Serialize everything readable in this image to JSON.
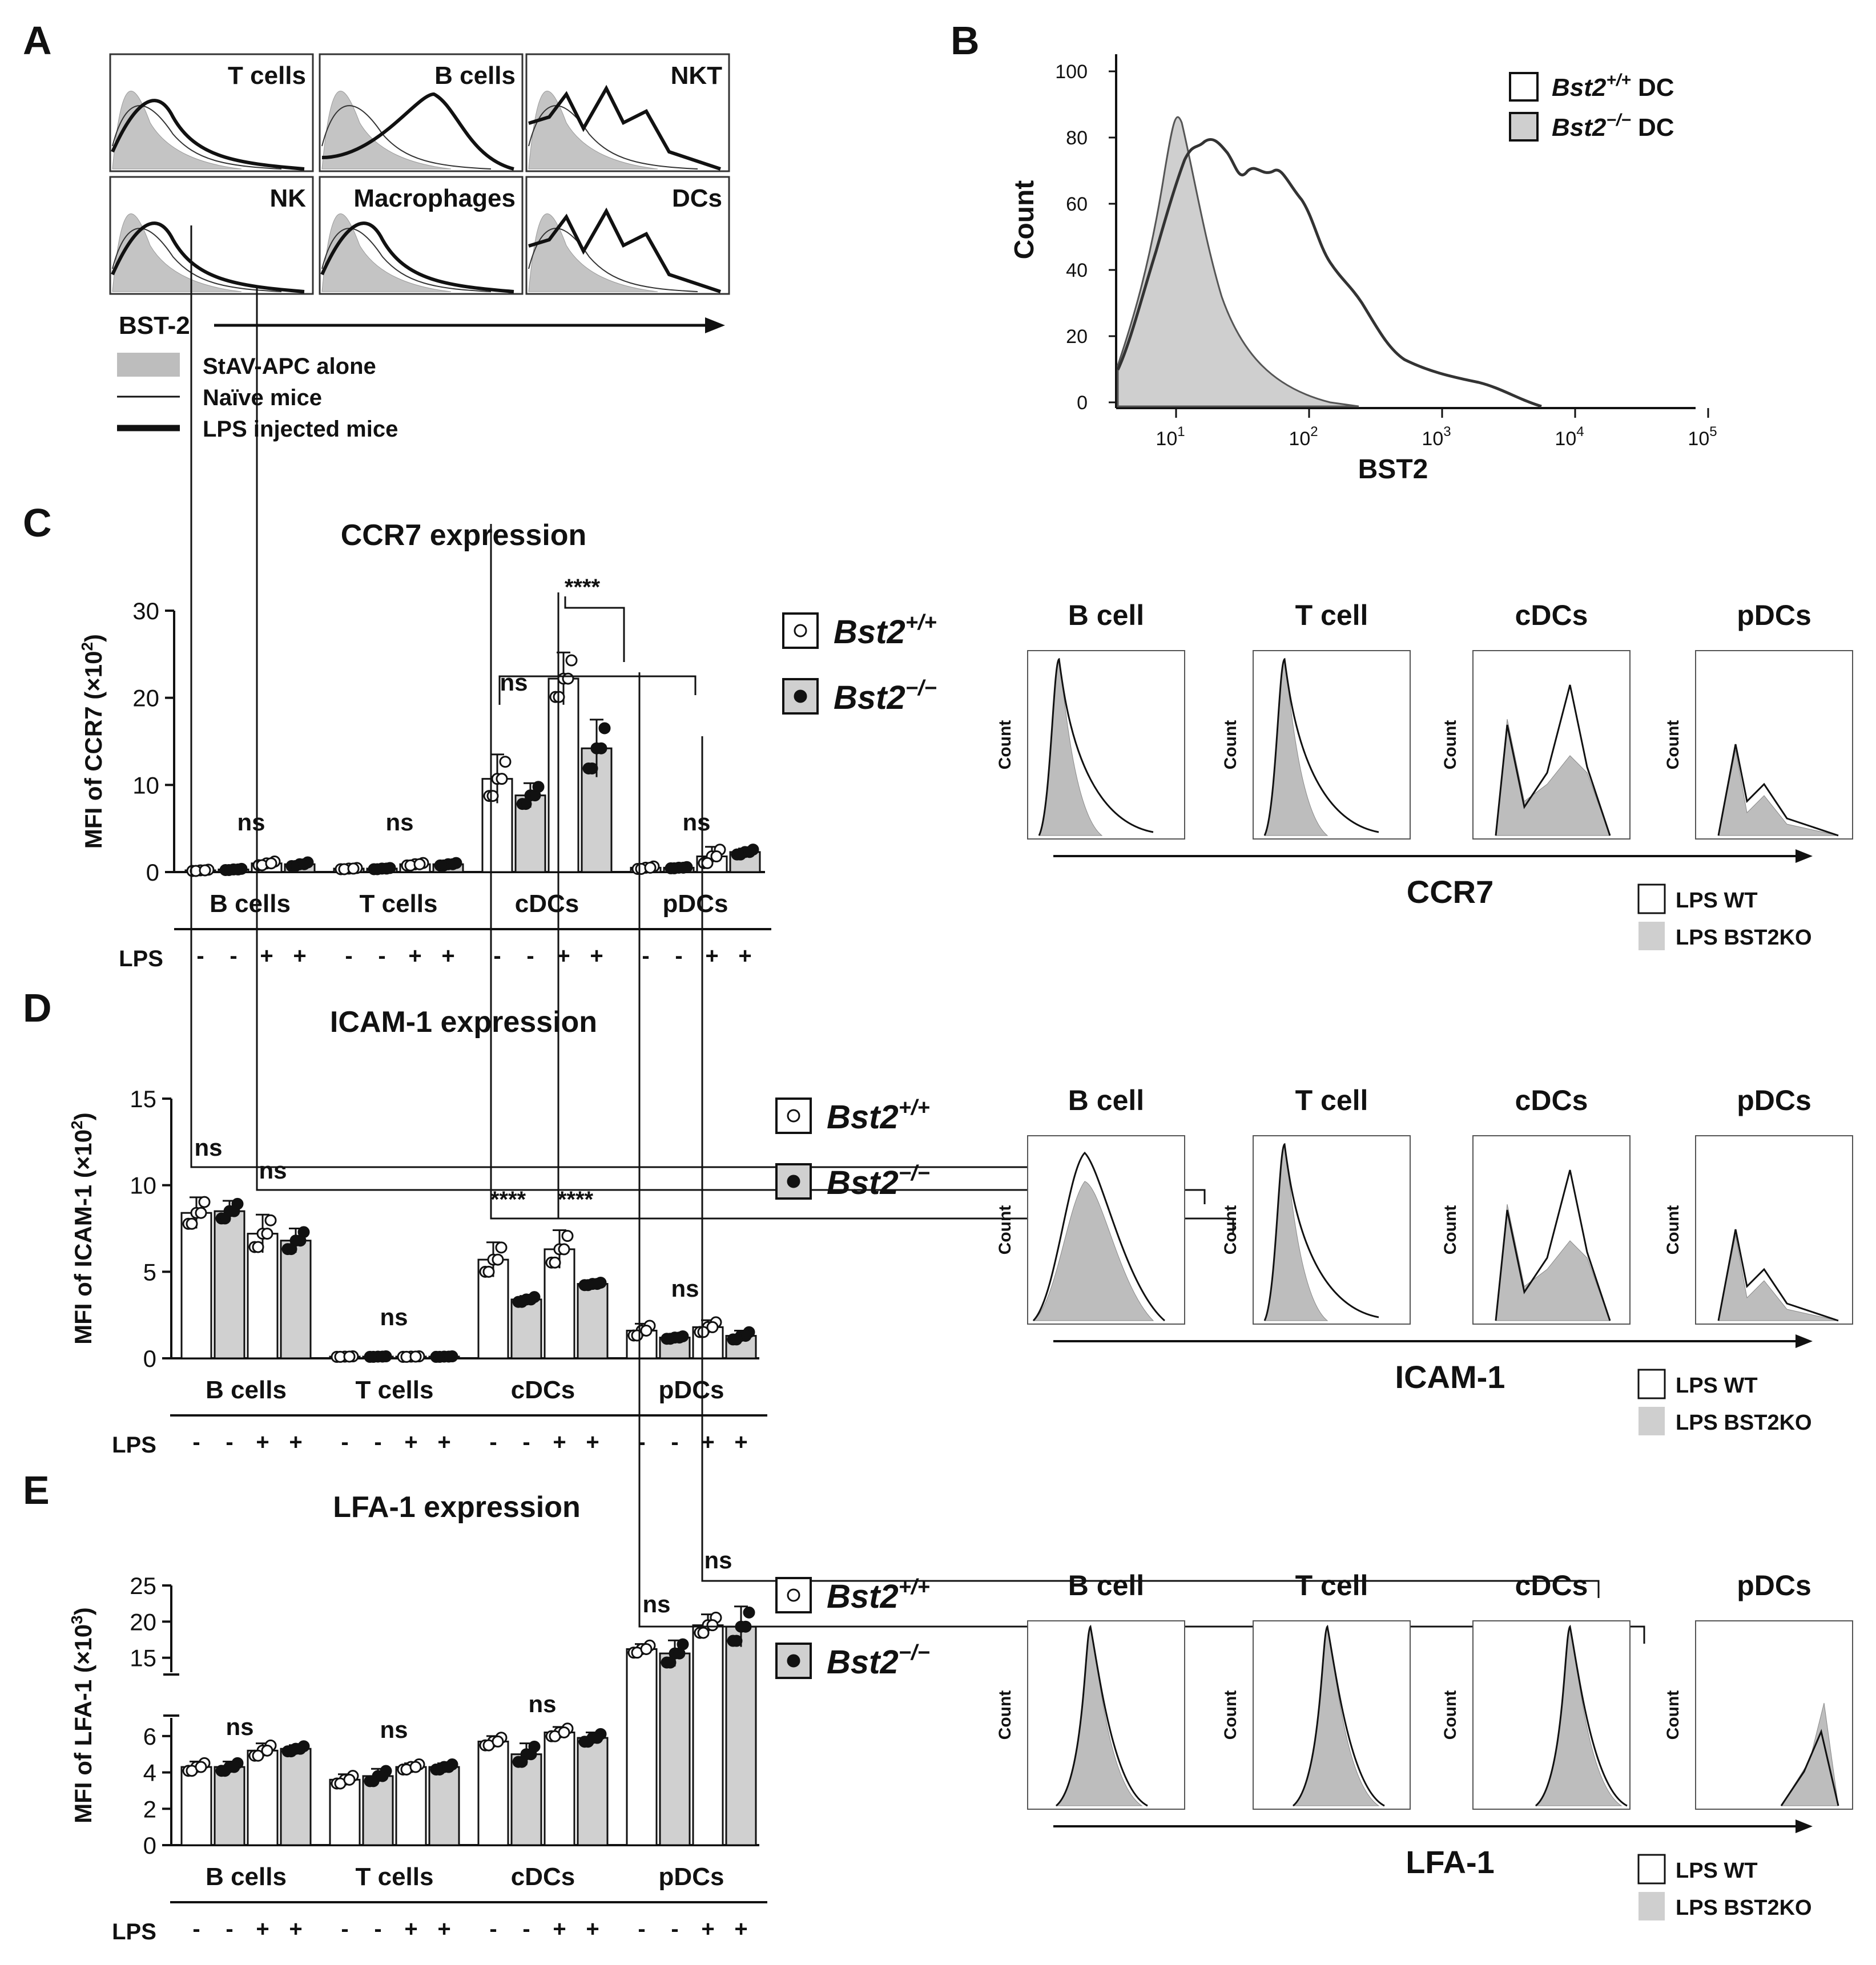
{
  "chart_data": [
    {
      "panel": "A",
      "type": "histogram-grid",
      "panels": [
        "T cells",
        "B cells",
        "NKT",
        "NK",
        "Macrophages",
        "DCs"
      ],
      "xlabel": "BST-2",
      "legend": [
        "StAV-APC alone",
        "Naïve mice",
        "LPS injected mice"
      ]
    },
    {
      "panel": "B",
      "type": "histogram",
      "ylabel": "Count",
      "xlabel": "BST2",
      "yticks": [
        "0",
        "20",
        "40",
        "60",
        "80",
        "100"
      ],
      "xticks": [
        "10",
        "10",
        "10",
        "10",
        "10"
      ],
      "xtick_exps": [
        "1",
        "2",
        "3",
        "4",
        "5"
      ],
      "legend": [
        {
          "name": "Bst2",
          "sup": "+/+",
          "suffix": " DC"
        },
        {
          "name": "Bst2",
          "sup": "−/−",
          "suffix": " DC"
        }
      ]
    },
    {
      "panel": "C",
      "type": "bar",
      "title": "CCR7 expression",
      "ylabel_main": "MFI of CCR7 (×10",
      "ylabel_sup": "2",
      "ylabel_end": ")",
      "yticks": [
        "0",
        "10",
        "20",
        "30"
      ],
      "ylim": [
        0,
        30
      ],
      "groups": [
        "B cells",
        "T cells",
        "cDCs",
        "pDCs"
      ],
      "lps_label": "LPS",
      "lps": [
        "-",
        "-",
        "+",
        "+"
      ],
      "means": [
        [
          0.2,
          0.3,
          1.0,
          0.9
        ],
        [
          0.4,
          0.4,
          0.9,
          0.9
        ],
        [
          10.7,
          8.8,
          22.2,
          14.2
        ],
        [
          0.5,
          0.5,
          1.8,
          2.3
        ]
      ],
      "errors": [
        [
          0.1,
          0.1,
          0.3,
          0.3
        ],
        [
          0.1,
          0.1,
          0.2,
          0.2
        ],
        [
          2.8,
          1.4,
          3.0,
          3.3
        ],
        [
          0.2,
          0.1,
          1.1,
          0.4
        ]
      ],
      "annotations": [
        "ns",
        "ns",
        "ns",
        "****",
        "ns"
      ]
    },
    {
      "panel": "D",
      "type": "bar",
      "title": "ICAM-1 expression",
      "ylabel_main": "MFI of ICAM-1 (×10",
      "ylabel_sup": "2",
      "ylabel_end": ")",
      "yticks": [
        "0",
        "5",
        "10",
        "15"
      ],
      "ylim": [
        0,
        15
      ],
      "groups": [
        "B cells",
        "T cells",
        "cDCs",
        "pDCs"
      ],
      "lps_label": "LPS",
      "lps": [
        "-",
        "-",
        "+",
        "+"
      ],
      "means": [
        [
          8.4,
          8.5,
          7.2,
          6.8
        ],
        [
          0.1,
          0.1,
          0.1,
          0.1
        ],
        [
          5.7,
          3.4,
          6.3,
          4.3
        ],
        [
          1.6,
          1.2,
          1.8,
          1.3
        ]
      ],
      "errors": [
        [
          0.9,
          0.6,
          1.1,
          0.7
        ],
        [
          0.02,
          0.02,
          0.02,
          0.02
        ],
        [
          1.0,
          0.2,
          1.1,
          0.1
        ],
        [
          0.4,
          0.1,
          0.4,
          0.3
        ]
      ],
      "annotations": [
        "ns",
        "ns",
        "ns",
        "****",
        "****",
        "ns"
      ]
    },
    {
      "panel": "E",
      "type": "bar",
      "title": "LFA-1 expression",
      "ylabel_main": "MFI of LFA-1 (×10",
      "ylabel_sup": "3",
      "ylabel_end": ")",
      "yticks": [
        "0",
        "2",
        "4",
        "6",
        "15",
        "20",
        "25"
      ],
      "ylim": [
        0,
        25
      ],
      "axis_break": [
        7,
        13
      ],
      "groups": [
        "B cells",
        "T cells",
        "cDCs",
        "pDCs"
      ],
      "lps_label": "LPS",
      "lps": [
        "-",
        "-",
        "+",
        "+"
      ],
      "means": [
        [
          4.3,
          4.3,
          5.2,
          5.3
        ],
        [
          3.6,
          3.8,
          4.3,
          4.3
        ],
        [
          5.7,
          5.0,
          6.2,
          5.9
        ],
        [
          16.2,
          15.6,
          19.5,
          19.3
        ]
      ],
      "errors": [
        [
          0.3,
          0.3,
          0.4,
          0.2
        ],
        [
          0.3,
          0.4,
          0.2,
          0.2
        ],
        [
          0.3,
          0.6,
          0.3,
          0.3
        ],
        [
          0.7,
          1.8,
          1.5,
          2.8
        ]
      ],
      "annotations": [
        "ns",
        "ns",
        "ns",
        "ns",
        "ns"
      ]
    },
    {
      "panel": "C-E right",
      "type": "histogram-row",
      "cells": [
        "B cell",
        "T cell",
        "cDCs",
        "pDCs"
      ],
      "ylabel": "Count",
      "xlabels": [
        "CCR7",
        "ICAM-1",
        "LFA-1"
      ],
      "legend": [
        "LPS WT",
        "LPS BST2KO"
      ]
    }
  ],
  "panel_letters": [
    "A",
    "B",
    "C",
    "D",
    "E"
  ],
  "genotype_legend": {
    "name": "Bst2",
    "wt_sup": "+/+",
    "ko_sup": "−/−"
  },
  "colors": {
    "bar_ko": "#d0d0d0",
    "bar_wt": "#ffffff",
    "shade": "#c8c8c8",
    "line": "#111111"
  }
}
